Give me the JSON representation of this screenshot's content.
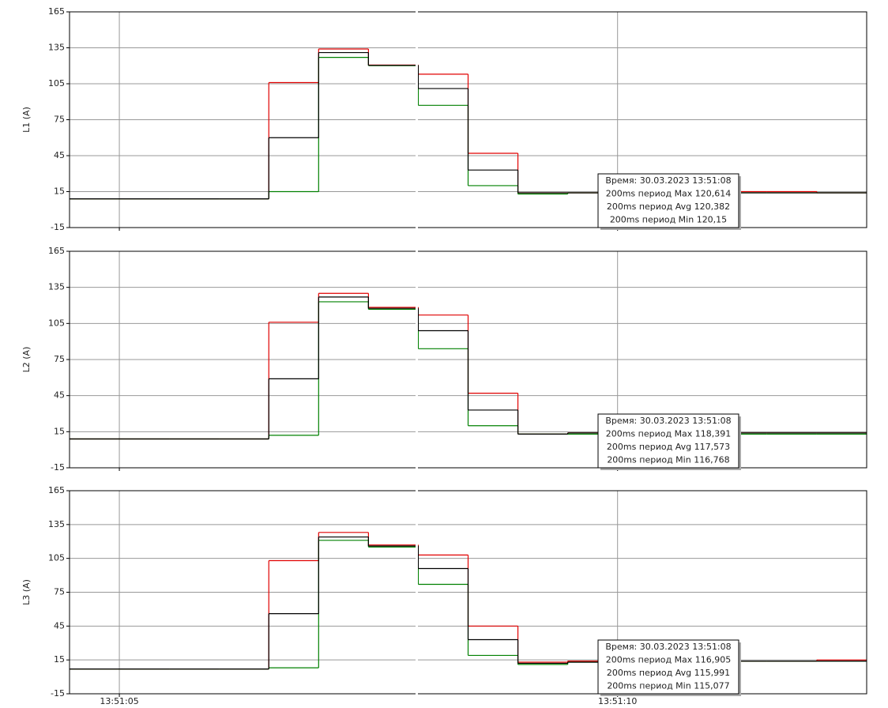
{
  "chart_data": [
    {
      "type": "line",
      "y_label": "L1 (A)",
      "categories": [
        null,
        null,
        null,
        null,
        null,
        null,
        null,
        null,
        null,
        null,
        null,
        null,
        null,
        null,
        null,
        null
      ],
      "series": [
        {
          "color": "#e00000",
          "values": [
            9,
            9,
            9,
            9,
            106,
            134,
            120.614,
            113,
            47,
            14,
            14,
            14,
            14,
            15,
            15,
            14
          ]
        },
        {
          "color": "#008000",
          "values": [
            9,
            9,
            9,
            9,
            15,
            127,
            120.15,
            87,
            20,
            13,
            14,
            14,
            14,
            14,
            14,
            14
          ]
        },
        {
          "color": "#000000",
          "values": [
            9,
            9,
            9,
            9,
            60,
            131,
            120.382,
            101,
            33,
            14,
            14,
            14,
            14,
            14,
            14,
            14
          ]
        }
      ],
      "ylim": [
        -15,
        165
      ],
      "yticks": [
        -15,
        15,
        45,
        75,
        105,
        135,
        165
      ],
      "grid": true,
      "tooltip": [
        "Время: 30.03.2023 13:51:08",
        "200ms период Max 120,614",
        "200ms период Avg 120,382",
        "200ms период Min 120,15"
      ]
    },
    {
      "type": "line",
      "y_label": "L2 (A)",
      "categories": [
        null,
        null,
        null,
        null,
        null,
        null,
        null,
        null,
        null,
        null,
        null,
        null,
        null,
        null,
        null,
        null
      ],
      "series": [
        {
          "color": "#e00000",
          "values": [
            9,
            9,
            9,
            9,
            106,
            130,
            118.391,
            112,
            47,
            13,
            14,
            14,
            14,
            14,
            14,
            14
          ]
        },
        {
          "color": "#008000",
          "values": [
            9,
            9,
            9,
            9,
            12,
            123,
            116.768,
            84,
            20,
            13,
            13,
            13,
            13,
            13,
            13,
            13
          ]
        },
        {
          "color": "#000000",
          "values": [
            9,
            9,
            9,
            9,
            59,
            127,
            117.573,
            99,
            33,
            13,
            14,
            14,
            14,
            14,
            14,
            14
          ]
        }
      ],
      "ylim": [
        -15,
        165
      ],
      "yticks": [
        -15,
        15,
        45,
        75,
        105,
        135,
        165
      ],
      "grid": true,
      "tooltip": [
        "Время: 30.03.2023 13:51:08",
        "200ms период Max 118,391",
        "200ms период Avg 117,573",
        "200ms период Min 116,768"
      ]
    },
    {
      "type": "line",
      "y_label": "L3 (A)",
      "categories": [
        null,
        null,
        null,
        null,
        null,
        null,
        null,
        null,
        null,
        null,
        null,
        null,
        null,
        null,
        null,
        null
      ],
      "series": [
        {
          "color": "#e00000",
          "values": [
            7,
            7,
            7,
            7,
            103,
            128,
            116.905,
            108,
            45,
            13,
            14,
            14,
            14,
            14,
            14,
            15
          ]
        },
        {
          "color": "#008000",
          "values": [
            7,
            7,
            7,
            7,
            8,
            121,
            115.077,
            82,
            19,
            11,
            13,
            13,
            13,
            14,
            14,
            14
          ]
        },
        {
          "color": "#000000",
          "values": [
            7,
            7,
            7,
            7,
            56,
            124,
            115.991,
            96,
            33,
            12,
            13,
            13,
            13,
            14,
            14,
            14
          ]
        }
      ],
      "ylim": [
        -15,
        165
      ],
      "yticks": [
        -15,
        15,
        45,
        75,
        105,
        135,
        165
      ],
      "grid": true,
      "xticks": [
        {
          "value": 1,
          "label": "13:51:05"
        },
        {
          "value": 11,
          "label": "13:51:10"
        }
      ],
      "tooltip": [
        "Время: 30.03.2023 13:51:08",
        "200ms период Max 116,905",
        "200ms период Avg 115,991",
        "200ms период Min 115,077"
      ]
    }
  ]
}
